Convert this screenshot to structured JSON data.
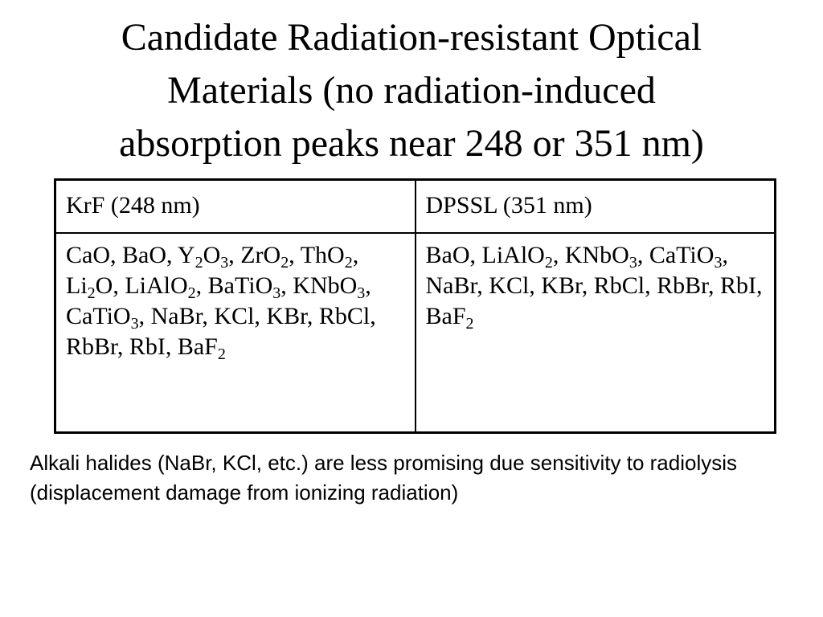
{
  "title": {
    "line1": "Candidate Radiation-resistant Optical",
    "line2": "Materials (no radiation-induced",
    "line3": "absorption peaks near 248 or 351 nm)"
  },
  "table": {
    "headers": [
      "KrF (248 nm)",
      "DPSSL (351 nm)"
    ],
    "krf_materials": [
      {
        "base": "CaO",
        "sub": null
      },
      {
        "base": "BaO",
        "sub": null
      },
      {
        "base": "Y",
        "sub": "2",
        "base2": "O",
        "sub2": "3"
      },
      {
        "base": "ZrO",
        "sub": "2"
      },
      {
        "base": "ThO",
        "sub": "2"
      },
      {
        "base": "Li",
        "sub": "2",
        "base2": "O"
      },
      {
        "base": "LiAlO",
        "sub": "2"
      },
      {
        "base": "BaTiO",
        "sub": "3"
      },
      {
        "base": "KNbO",
        "sub": "3"
      },
      {
        "base": "CaTiO",
        "sub": "3"
      },
      {
        "base": "NaBr"
      },
      {
        "base": "KCl"
      },
      {
        "base": "KBr"
      },
      {
        "base": "RbCl"
      },
      {
        "base": "RbBr"
      },
      {
        "base": "RbI"
      },
      {
        "base": "BaF",
        "sub": "2"
      }
    ],
    "dpssl_materials": [
      {
        "base": "BaO"
      },
      {
        "base": "LiAlO",
        "sub": "2"
      },
      {
        "base": "KNbO",
        "sub": "3"
      },
      {
        "base": "CaTiO",
        "sub": "3"
      },
      {
        "base": "NaBr"
      },
      {
        "base": "KCl"
      },
      {
        "base": "KBr"
      },
      {
        "base": "RbCl"
      },
      {
        "base": "RbBr"
      },
      {
        "base": "RbI"
      },
      {
        "base": "BaF",
        "sub": "2"
      }
    ]
  },
  "note": {
    "text": "Alkali halides (NaBr, KCl, etc.) are less promising due sensitivity to radiolysis (displacement damage from ionizing radiation)"
  }
}
